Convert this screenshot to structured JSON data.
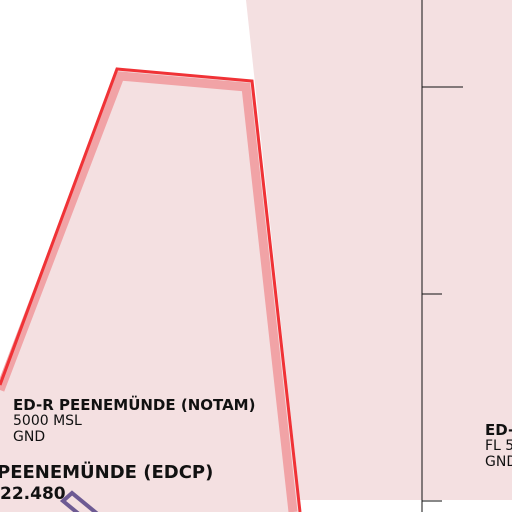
{
  "map": {
    "colors": {
      "background": "#ffffff",
      "restricted_fill": "#f4e0e1",
      "restricted_border": "#f03236",
      "restricted_border_halo": "#f1a3a6",
      "gridline": "#111111",
      "runway_marker": "#6d5a93"
    },
    "areas": [
      {
        "id": "left",
        "name": "ED-R PEENEMÜNDE (NOTAM)",
        "upper_limit": "5000 MSL",
        "lower_limit": "GND"
      },
      {
        "id": "right",
        "name": "ED-",
        "upper_limit": "FL 5",
        "lower_limit": "GND"
      }
    ],
    "aerodrome": {
      "name": "PEENEMÜNDE (EDCP)",
      "frequency": "22.480",
      "icon": "runway-icon"
    },
    "gridline": {
      "icon": "grid-line"
    }
  }
}
